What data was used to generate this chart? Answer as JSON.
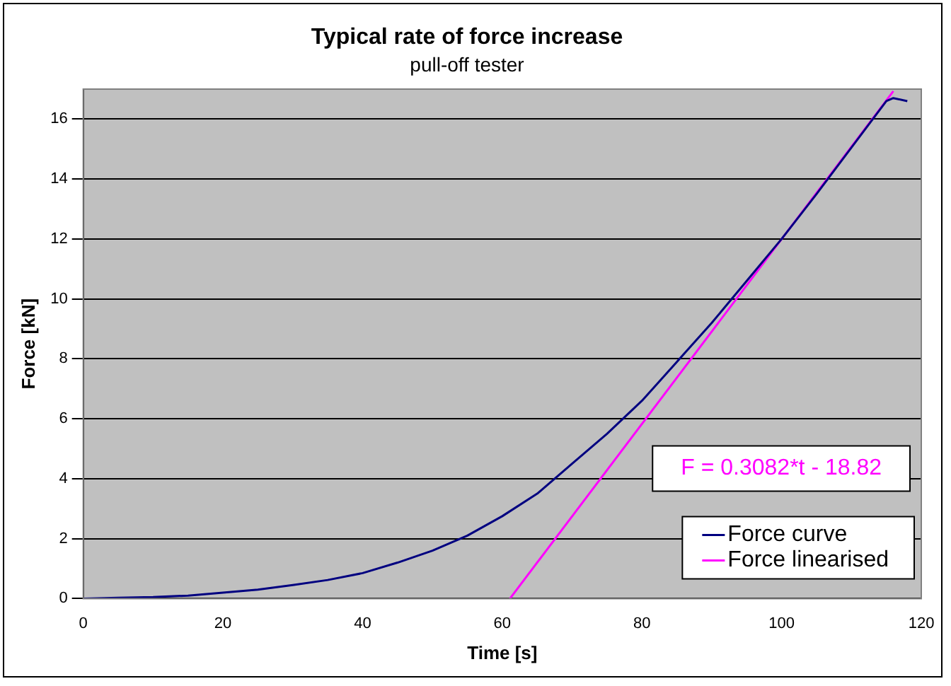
{
  "chart_data": {
    "type": "line",
    "title": "Typical rate of force increase",
    "subtitle": "pull-off tester",
    "xlabel": "Time [s]",
    "ylabel": "Force [kN]",
    "xlim": [
      0,
      120
    ],
    "xticks": [
      0,
      20,
      40,
      60,
      80,
      100,
      120
    ],
    "ylim": [
      0,
      17
    ],
    "yticks": [
      0,
      2,
      4,
      6,
      8,
      10,
      12,
      14,
      16
    ],
    "grid": "y",
    "legend": "bottom right",
    "marker": "none",
    "line_style": "solid",
    "series": [
      {
        "name": "Force curve",
        "color": "#000080",
        "x": [
          0,
          5,
          10,
          15,
          20,
          25,
          30,
          35,
          40,
          45,
          50,
          55,
          60,
          65,
          70,
          75,
          80,
          85,
          90,
          95,
          100,
          105,
          110,
          115,
          116,
          118
        ],
        "values": [
          0,
          0.03,
          0.05,
          0.1,
          0.2,
          0.3,
          0.45,
          0.62,
          0.85,
          1.2,
          1.6,
          2.1,
          2.75,
          3.5,
          4.5,
          5.5,
          6.6,
          7.9,
          9.2,
          10.6,
          12.0,
          13.5,
          15.05,
          16.6,
          16.7,
          16.6
        ]
      },
      {
        "name": "Force linearised",
        "color": "#ff00ff",
        "x": [
          61.1,
          116
        ],
        "values": [
          0,
          16.93
        ]
      }
    ],
    "annotations": [
      "F = 0.3082*t - 18.82"
    ]
  }
}
